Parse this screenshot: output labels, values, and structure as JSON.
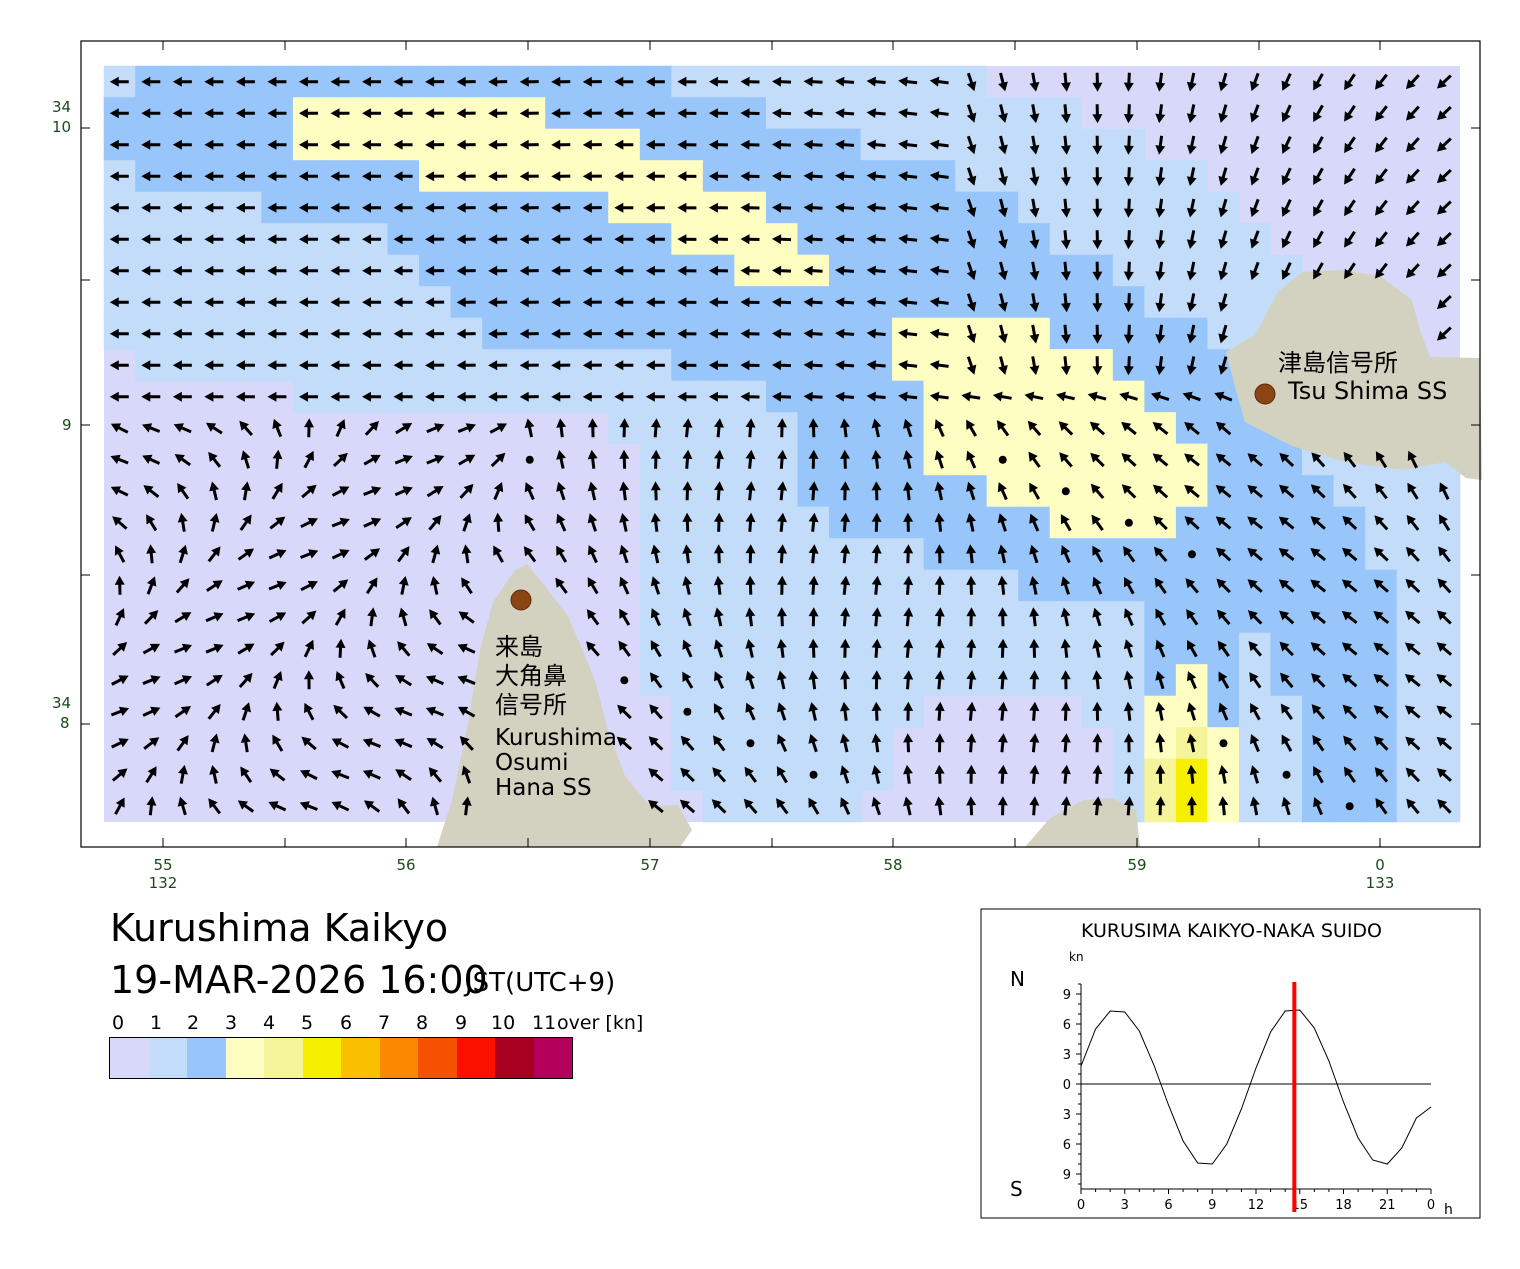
{
  "map": {
    "lat_labels": [
      {
        "deg": "34",
        "min": "10"
      },
      {
        "deg": "",
        "min": "9"
      },
      {
        "deg": "34",
        "min": "8"
      }
    ],
    "lon_labels": [
      {
        "min": "55",
        "deg": "132"
      },
      {
        "min": "56",
        "deg": ""
      },
      {
        "min": "57",
        "deg": ""
      },
      {
        "min": "58",
        "deg": ""
      },
      {
        "min": "59",
        "deg": ""
      },
      {
        "min": "0",
        "deg": "133"
      }
    ],
    "stations": [
      {
        "name_ja": "津島信号所",
        "name_en": "Tsu Shima SS"
      },
      {
        "name_ja_lines": [
          "来島",
          "大角鼻",
          "信号所"
        ],
        "name_en_lines": [
          "Kurushima",
          "Osumi",
          "Hana SS"
        ]
      }
    ],
    "colors": {
      "land": "#d3d2c1",
      "station_dot": "#8b4513",
      "arrow": "#000000",
      "tick_label": "#1a4a1a"
    }
  },
  "title": "Kurushima Kaikyo",
  "datetime": "19-MAR-2026 16:00",
  "timezone": "JST(UTC+9)",
  "legend": {
    "labels": [
      "0",
      "1",
      "2",
      "3",
      "4",
      "5",
      "6",
      "7",
      "8",
      "9",
      "10",
      "11"
    ],
    "over_label": "over [kn]",
    "colors": [
      "#d8d8fa",
      "#c2dcfa",
      "#98c6fa",
      "#fffec2",
      "#f6f49a",
      "#f7ef00",
      "#fac000",
      "#fb8800",
      "#f55200",
      "#fb1000",
      "#a80020",
      "#b4005a"
    ]
  },
  "chart_data": {
    "type": "line",
    "title": "KURUSIMA KAIKYO-NAKA SUIDO",
    "ylabel": "kn",
    "xlabel": "",
    "north_label": "N",
    "south_label": "S",
    "x_unit": "h",
    "x_ticks": [
      "0",
      "3",
      "6",
      "9",
      "12",
      "15",
      "18",
      "21",
      "0"
    ],
    "y_ticks": [
      "9",
      "6",
      "3",
      "0",
      "3",
      "6",
      "9"
    ],
    "ylim": [
      -10,
      10
    ],
    "xlim": [
      0,
      24
    ],
    "series": [
      {
        "x": [
          0,
          1,
          2,
          3,
          4,
          5,
          6,
          7,
          8,
          9,
          10,
          11,
          12,
          13,
          14,
          15,
          16,
          17,
          18,
          19,
          20,
          21,
          22,
          23,
          24
        ],
        "values": [
          1.8,
          5.5,
          7.3,
          7.2,
          5.3,
          1.9,
          -2.1,
          -5.7,
          -7.9,
          -8.0,
          -6.0,
          -2.5,
          1.6,
          5.2,
          7.3,
          7.4,
          5.6,
          2.3,
          -1.8,
          -5.4,
          -7.6,
          -8.0,
          -6.4,
          -3.4,
          -2.3
        ]
      }
    ],
    "current_time_marker": 16,
    "marker_color": "#ff0000",
    "current_grid": {
      "type": "heatmap",
      "units": "kn",
      "lat_range": [
        "34°7.7′",
        "34°10.1′"
      ],
      "lon_range": [
        "132°54.8′",
        "133°0.4′"
      ],
      "speed_bins": [
        "0",
        "1",
        "2",
        "3",
        "4",
        "5",
        "6",
        "7",
        "8",
        "9",
        "10",
        "11"
      ]
    }
  }
}
